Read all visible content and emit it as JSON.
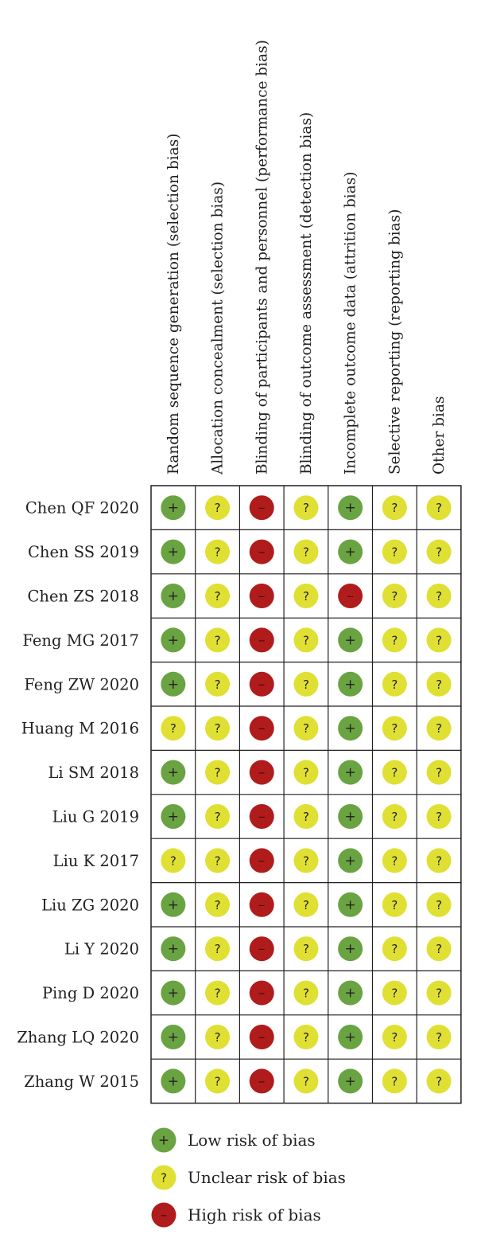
{
  "chart_data": {
    "type": "table",
    "domains": [
      "Random sequence generation (selection bias)",
      "Allocation concealment (selection bias)",
      "Blinding of participants and personnel (performance bias)",
      "Blinding of outcome assessment (detection bias)",
      "Incomplete outcome data (attrition bias)",
      "Selective reporting (reporting bias)",
      "Other bias"
    ],
    "studies": [
      "Chen QF 2020",
      "Chen SS 2019",
      "Chen ZS 2018",
      "Feng MG 2017",
      "Feng ZW 2020",
      "Huang M 2016",
      "Li SM 2018",
      "Liu G 2019",
      "Liu K 2017",
      "Liu ZG 2020",
      "Li Y 2020",
      "Ping D 2020",
      "Zhang LQ 2020",
      "Zhang W 2015"
    ],
    "judgements": [
      [
        "low",
        "unclear",
        "high",
        "unclear",
        "low",
        "unclear",
        "unclear"
      ],
      [
        "low",
        "unclear",
        "high",
        "unclear",
        "low",
        "unclear",
        "unclear"
      ],
      [
        "low",
        "unclear",
        "high",
        "unclear",
        "high",
        "unclear",
        "unclear"
      ],
      [
        "low",
        "unclear",
        "high",
        "unclear",
        "low",
        "unclear",
        "unclear"
      ],
      [
        "low",
        "unclear",
        "high",
        "unclear",
        "low",
        "unclear",
        "unclear"
      ],
      [
        "unclear",
        "unclear",
        "high",
        "unclear",
        "low",
        "unclear",
        "unclear"
      ],
      [
        "low",
        "unclear",
        "high",
        "unclear",
        "low",
        "unclear",
        "unclear"
      ],
      [
        "low",
        "unclear",
        "high",
        "unclear",
        "low",
        "unclear",
        "unclear"
      ],
      [
        "unclear",
        "unclear",
        "high",
        "unclear",
        "low",
        "unclear",
        "unclear"
      ],
      [
        "low",
        "unclear",
        "high",
        "unclear",
        "low",
        "unclear",
        "unclear"
      ],
      [
        "low",
        "unclear",
        "high",
        "unclear",
        "low",
        "unclear",
        "unclear"
      ],
      [
        "low",
        "unclear",
        "high",
        "unclear",
        "low",
        "unclear",
        "unclear"
      ],
      [
        "low",
        "unclear",
        "high",
        "unclear",
        "low",
        "unclear",
        "unclear"
      ],
      [
        "low",
        "unclear",
        "high",
        "unclear",
        "low",
        "unclear",
        "unclear"
      ]
    ],
    "legend": [
      {
        "key": "low",
        "symbol": "+",
        "label": "Low risk of bias"
      },
      {
        "key": "unclear",
        "symbol": "?",
        "label": "Unclear risk of bias"
      },
      {
        "key": "high",
        "symbol": "–",
        "label": "High risk of bias"
      }
    ],
    "colors": {
      "low": "#6aa342",
      "unclear": "#dfe033",
      "high": "#b01c1c",
      "grid": "#231f20"
    },
    "legend_placement": "bottom"
  }
}
